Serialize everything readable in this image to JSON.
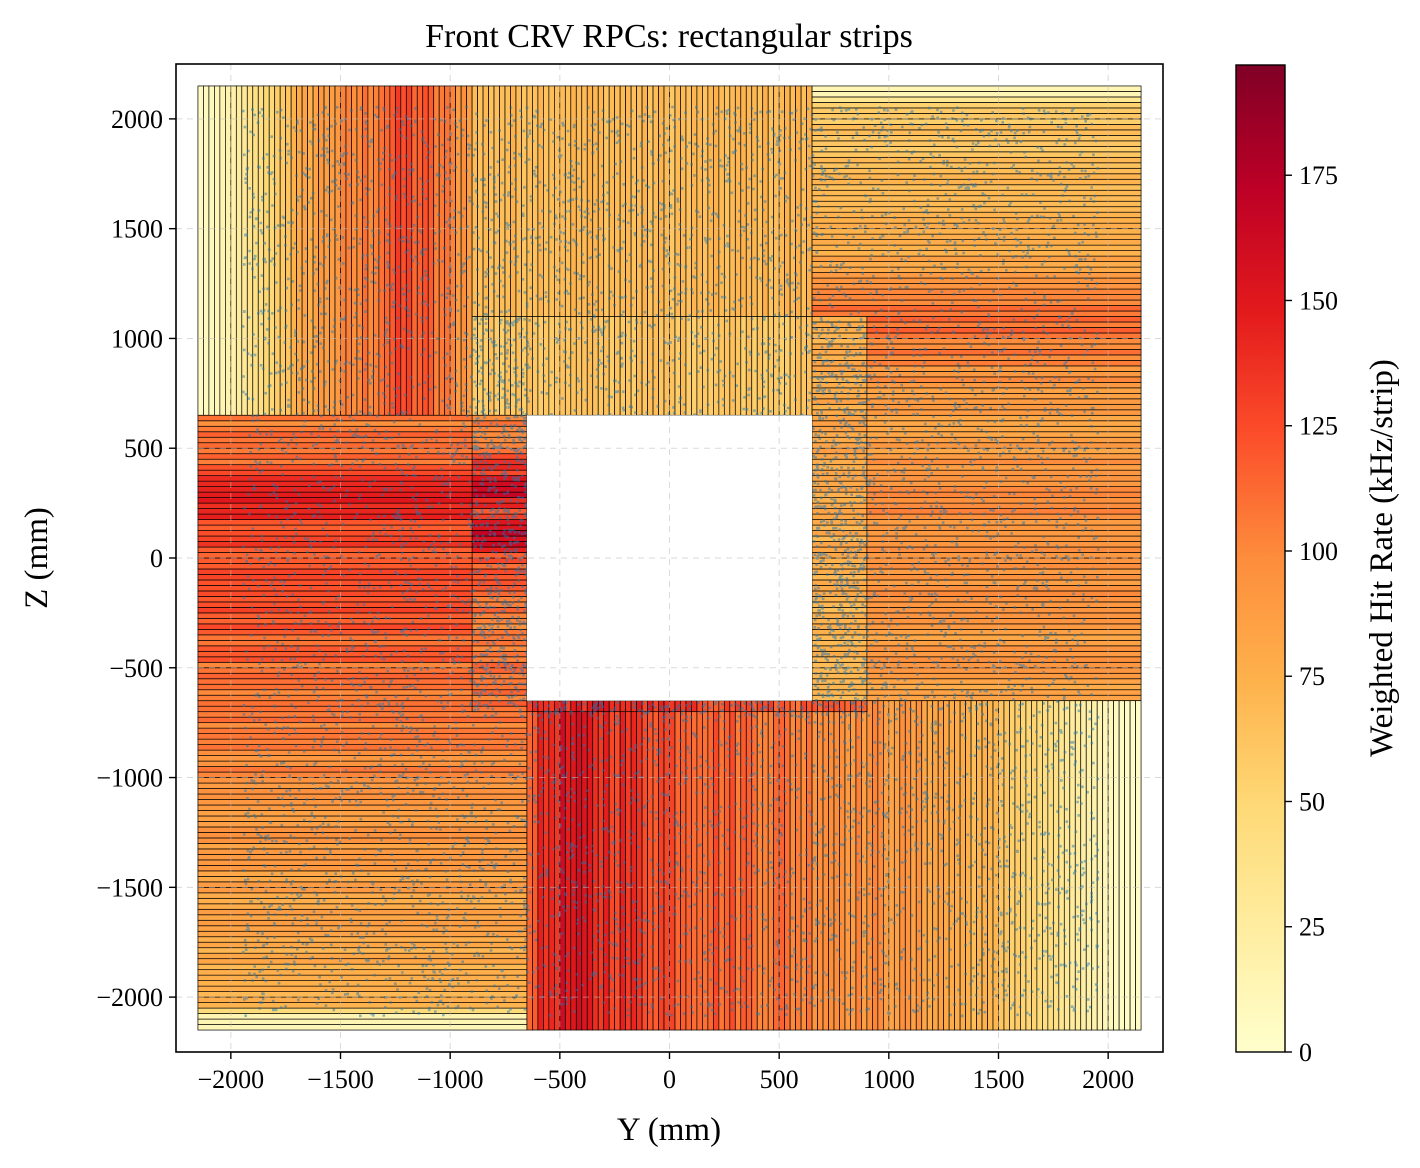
{
  "chart_data": {
    "type": "heatmap",
    "title": "Front CRV RPCs: rectangular strips",
    "xlabel": "Y (mm)",
    "ylabel": "Z (mm)",
    "xlim": [
      -2250,
      2250
    ],
    "ylim": [
      -2250,
      2250
    ],
    "x_ticks": [
      -2000,
      -1500,
      -1000,
      -500,
      0,
      500,
      1000,
      1500,
      2000
    ],
    "y_ticks": [
      -2000,
      -1500,
      -1000,
      -500,
      0,
      500,
      1000,
      1500,
      2000
    ],
    "x_tick_labels": [
      "−2000",
      "−1500",
      "−1000",
      "−500",
      "0",
      "500",
      "1000",
      "1500",
      "2000"
    ],
    "y_tick_labels": [
      "−2000",
      "−1500",
      "−1000",
      "−500",
      "0",
      "500",
      "1000",
      "1500",
      "2000"
    ],
    "grid": true,
    "colorbar": {
      "label": "Weighted Hit Rate (kHz/strip)",
      "range": [
        0,
        197
      ],
      "ticks": [
        0,
        25,
        50,
        75,
        100,
        125,
        150,
        175
      ],
      "tick_labels": [
        "0",
        "25",
        "50",
        "75",
        "100",
        "125",
        "150",
        "175"
      ],
      "colormap": "YlOrRd",
      "colors": [
        "#ffffcc",
        "#ffeda0",
        "#fed976",
        "#feb24c",
        "#fd8d3c",
        "#fc4e2a",
        "#e31a1c",
        "#bd0026",
        "#800026"
      ]
    },
    "hit_color": "#1f77b4",
    "regions": [
      {
        "name": "top-left module",
        "orientation": "vertical",
        "y": [
          -2150,
          -900
        ],
        "z": [
          650,
          2150
        ],
        "strip_pitch": 25,
        "profile": [
          [
            -2150,
            5
          ],
          [
            -2060,
            10
          ],
          [
            -1960,
            25
          ],
          [
            -1850,
            45
          ],
          [
            -1760,
            62
          ],
          [
            -1650,
            80
          ],
          [
            -1550,
            90
          ],
          [
            -1420,
            100
          ],
          [
            -1300,
            115
          ],
          [
            -1200,
            125
          ],
          [
            -1080,
            110
          ],
          [
            -960,
            95
          ],
          [
            -900,
            95
          ]
        ]
      },
      {
        "name": "top-middle module",
        "orientation": "vertical",
        "y": [
          -900,
          650
        ],
        "z": [
          1100,
          2150
        ],
        "strip_pitch": 25,
        "profile": [
          [
            -900,
            65
          ],
          [
            -600,
            70
          ],
          [
            -300,
            68
          ],
          [
            0,
            66
          ],
          [
            300,
            68
          ],
          [
            650,
            70
          ]
        ]
      },
      {
        "name": "top-right module",
        "orientation": "horizontal",
        "y": [
          650,
          2150
        ],
        "z": [
          -650,
          2150
        ],
        "strip_pitch": 25,
        "profile": [
          [
            -650,
            85
          ],
          [
            -300,
            90
          ],
          [
            0,
            95
          ],
          [
            300,
            95
          ],
          [
            700,
            85
          ],
          [
            1000,
            105
          ],
          [
            1100,
            112
          ],
          [
            1300,
            85
          ],
          [
            1600,
            70
          ],
          [
            1900,
            62
          ],
          [
            2060,
            60
          ],
          [
            2100,
            15
          ],
          [
            2150,
            10
          ]
        ]
      },
      {
        "name": "bottom-left module",
        "orientation": "horizontal",
        "y": [
          -2150,
          -650
        ],
        "z": [
          -2150,
          650
        ],
        "strip_pitch": 25,
        "profile": [
          [
            -2150,
            10
          ],
          [
            -2080,
            15
          ],
          [
            -2050,
            70
          ],
          [
            -1900,
            75
          ],
          [
            -1700,
            80
          ],
          [
            -1400,
            85
          ],
          [
            -1100,
            95
          ],
          [
            -800,
            105
          ],
          [
            -500,
            110
          ],
          [
            -200,
            120
          ],
          [
            0,
            125
          ],
          [
            150,
            130
          ],
          [
            300,
            140
          ],
          [
            450,
            110
          ],
          [
            650,
            105
          ]
        ]
      },
      {
        "name": "bottom-right module",
        "orientation": "vertical",
        "y": [
          -650,
          2150
        ],
        "z": [
          -2150,
          -650
        ],
        "strip_pitch": 25,
        "profile": [
          [
            -650,
            120
          ],
          [
            -500,
            150
          ],
          [
            -400,
            145
          ],
          [
            -200,
            135
          ],
          [
            0,
            125
          ],
          [
            300,
            115
          ],
          [
            600,
            105
          ],
          [
            900,
            95
          ],
          [
            1200,
            85
          ],
          [
            1500,
            65
          ],
          [
            1700,
            45
          ],
          [
            1850,
            25
          ],
          [
            1950,
            15
          ],
          [
            2050,
            5
          ],
          [
            2150,
            3
          ]
        ]
      },
      {
        "name": "inner top",
        "orientation": "vertical",
        "y": [
          -900,
          650
        ],
        "z": [
          650,
          1100
        ],
        "strip_pitch": 25,
        "profile": [
          [
            -900,
            60
          ],
          [
            0,
            62
          ],
          [
            650,
            60
          ]
        ]
      },
      {
        "name": "inner left",
        "orientation": "horizontal",
        "y": [
          -900,
          -650
        ],
        "z": [
          -700,
          650
        ],
        "strip_pitch": 25,
        "profile": [
          [
            -700,
            110
          ],
          [
            -300,
            105
          ],
          [
            0,
            120
          ],
          [
            100,
            175
          ],
          [
            200,
            120
          ],
          [
            300,
            160
          ],
          [
            500,
            110
          ],
          [
            650,
            100
          ]
        ]
      },
      {
        "name": "inner right",
        "orientation": "horizontal",
        "y": [
          650,
          900
        ],
        "z": [
          -700,
          1100
        ],
        "strip_pitch": 25,
        "profile": [
          [
            -700,
            70
          ],
          [
            0,
            75
          ],
          [
            500,
            80
          ],
          [
            1100,
            75
          ]
        ]
      },
      {
        "name": "inner bottom",
        "orientation": "vertical",
        "y": [
          -650,
          900
        ],
        "z": [
          -700,
          -650
        ],
        "strip_pitch": 25,
        "profile": [
          [
            -650,
            140
          ],
          [
            -300,
            145
          ],
          [
            100,
            130
          ],
          [
            500,
            120
          ],
          [
            900,
            110
          ]
        ]
      }
    ],
    "hole": {
      "y": [
        -650,
        650
      ],
      "z": [
        -650,
        650
      ]
    }
  }
}
